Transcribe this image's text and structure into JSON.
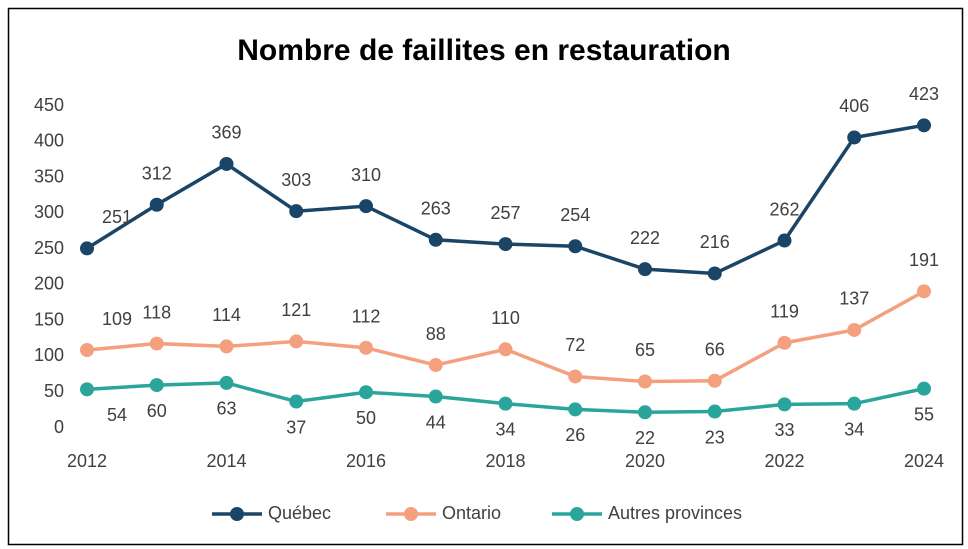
{
  "chart_data": {
    "type": "line",
    "title": "Nombre de faillites en restauration",
    "x": [
      2012,
      2013,
      2014,
      2015,
      2016,
      2017,
      2018,
      2019,
      2020,
      2021,
      2022,
      2023,
      2024
    ],
    "xlim": [
      2012,
      2024
    ],
    "xticks": [
      2012,
      2014,
      2016,
      2018,
      2020,
      2022,
      2024
    ],
    "ylim": [
      0,
      450
    ],
    "yticks": [
      0,
      50,
      100,
      150,
      200,
      250,
      300,
      350,
      400,
      450
    ],
    "grid": false,
    "legend": "bottom",
    "series": [
      {
        "name": "Québec",
        "color": "#1b4566",
        "values": [
          251,
          312,
          369,
          303,
          310,
          263,
          257,
          254,
          222,
          216,
          262,
          406,
          423
        ]
      },
      {
        "name": "Ontario",
        "color": "#f4a07f",
        "values": [
          109,
          118,
          114,
          121,
          112,
          88,
          110,
          72,
          65,
          66,
          119,
          137,
          191
        ]
      },
      {
        "name": "Autres provinces",
        "color": "#2aa59b",
        "values": [
          54,
          60,
          63,
          37,
          50,
          44,
          34,
          26,
          22,
          23,
          33,
          34,
          55
        ]
      }
    ]
  }
}
